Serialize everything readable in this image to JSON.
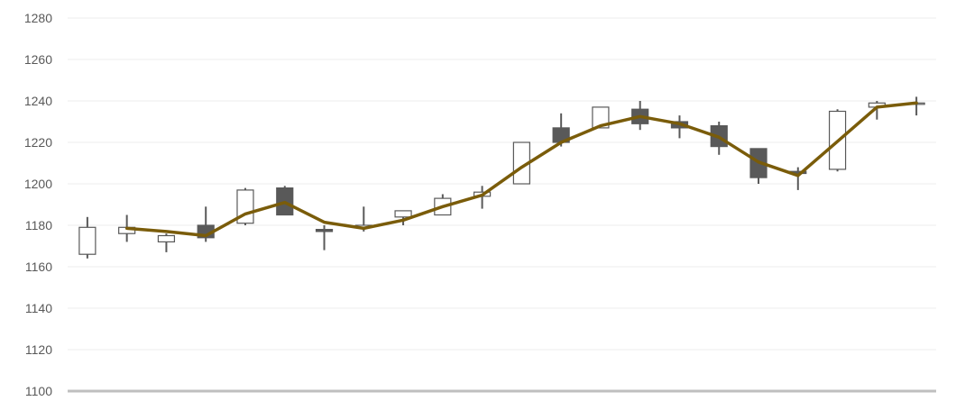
{
  "chart_data": {
    "type": "candlestick",
    "ylim": [
      1100,
      1280
    ],
    "y_ticks": [
      "1100",
      "1120",
      "1140",
      "1160",
      "1180",
      "1200",
      "1220",
      "1240",
      "1260",
      "1280"
    ],
    "y_tick_values": [
      1100,
      1120,
      1140,
      1160,
      1180,
      1200,
      1220,
      1240,
      1260,
      1280
    ],
    "grid": true,
    "x_tick_labels": [],
    "candles": [
      {
        "open": 1166,
        "high": 1184,
        "low": 1164,
        "close": 1179
      },
      {
        "open": 1176,
        "high": 1185,
        "low": 1172,
        "close": 1179
      },
      {
        "open": 1172,
        "high": 1176,
        "low": 1167,
        "close": 1175
      },
      {
        "open": 1180,
        "high": 1189,
        "low": 1172,
        "close": 1174
      },
      {
        "open": 1181,
        "high": 1198,
        "low": 1180,
        "close": 1197
      },
      {
        "open": 1198,
        "high": 1199,
        "low": 1185,
        "close": 1185
      },
      {
        "open": 1178,
        "high": 1180,
        "low": 1168,
        "close": 1177
      },
      {
        "open": 1179,
        "high": 1189,
        "low": 1177,
        "close": 1180
      },
      {
        "open": 1184,
        "high": 1187,
        "low": 1180,
        "close": 1187
      },
      {
        "open": 1185,
        "high": 1195,
        "low": 1185,
        "close": 1193
      },
      {
        "open": 1194,
        "high": 1199,
        "low": 1188,
        "close": 1196
      },
      {
        "open": 1200,
        "high": 1220,
        "low": 1200,
        "close": 1220
      },
      {
        "open": 1227,
        "high": 1234,
        "low": 1218,
        "close": 1220
      },
      {
        "open": 1227,
        "high": 1237,
        "low": 1227,
        "close": 1237
      },
      {
        "open": 1236,
        "high": 1240,
        "low": 1226,
        "close": 1229
      },
      {
        "open": 1230,
        "high": 1233,
        "low": 1222,
        "close": 1227
      },
      {
        "open": 1228,
        "high": 1230,
        "low": 1214,
        "close": 1218
      },
      {
        "open": 1217,
        "high": 1217,
        "low": 1200,
        "close": 1203
      },
      {
        "open": 1206,
        "high": 1208,
        "low": 1197,
        "close": 1205
      },
      {
        "open": 1207,
        "high": 1236,
        "low": 1206,
        "close": 1235
      },
      {
        "open": 1237,
        "high": 1240,
        "low": 1231,
        "close": 1239
      },
      {
        "open": 1239,
        "high": 1242,
        "low": 1233,
        "close": 1239
      }
    ],
    "series": [
      {
        "type": "line",
        "values": [
          null,
          1178.5,
          1177,
          1175,
          1185.5,
          1191,
          1181.5,
          1178.5,
          1182.5,
          1189,
          1194.5,
          1208,
          1220,
          1228,
          1232.5,
          1229,
          1222.5,
          1210.5,
          1204,
          1220.5,
          1237,
          1239
        ],
        "color": "#7a5c0a"
      }
    ],
    "colors": {
      "up_body": "#ffffff",
      "down_body": "#595959",
      "candle_edge": "#595959",
      "wick": "#595959",
      "grid": "#ececec",
      "axis": "#bfbfbf"
    }
  }
}
